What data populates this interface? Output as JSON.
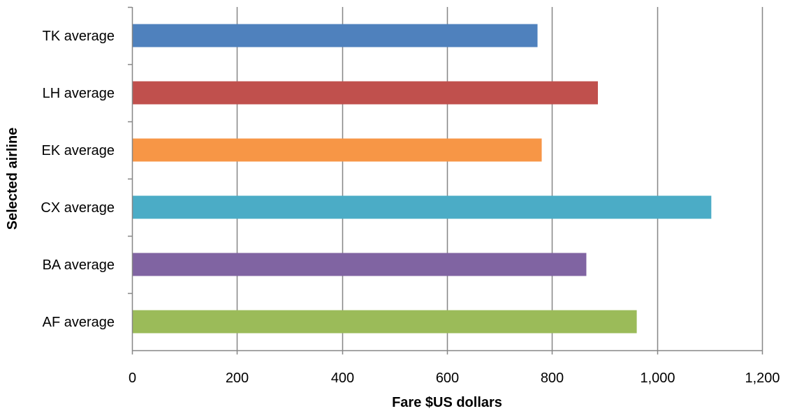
{
  "chart_data": {
    "type": "bar",
    "orientation": "horizontal",
    "categories": [
      "AF average",
      "BA average",
      "CX average",
      "EK average",
      "LH average",
      "TK average"
    ],
    "values": [
      960,
      864,
      1102,
      779,
      886,
      771
    ],
    "colors": [
      "#9bbb59",
      "#8064a2",
      "#4bacc6",
      "#f79646",
      "#c0504d",
      "#4f81bd"
    ],
    "xlabel": "Fare $US dollars",
    "ylabel": "Selected airline",
    "xlim": [
      0,
      1200
    ],
    "xticks": [
      0,
      200,
      400,
      600,
      800,
      1000,
      1200
    ],
    "xtick_labels": [
      "0",
      "200",
      "400",
      "600",
      "800",
      "1,000",
      "1,200"
    ],
    "grid": "vertical",
    "legend": "none"
  }
}
